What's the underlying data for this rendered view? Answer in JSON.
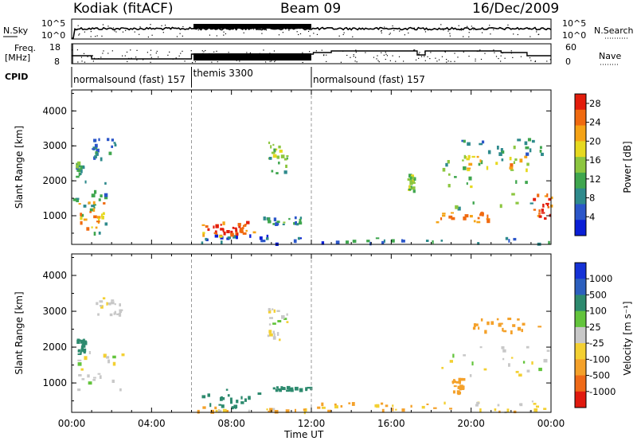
{
  "header": {
    "station": "Kodiak (fitACF)",
    "beam": "Beam 09",
    "date": "16/Dec/2009"
  },
  "aux_panels": {
    "nsky_label": "N.Sky",
    "nsky_ticks": [
      "10^5",
      "10^0"
    ],
    "nsearch_label": "N.Search",
    "nsearch_ticks": [
      "10^5",
      "10^0"
    ],
    "freq_label_1": "Freq.",
    "freq_label_2": "[MHz]",
    "freq_ticks": [
      "18",
      "8"
    ],
    "nave_label": "Nave",
    "nave_ticks": [
      "60",
      "0"
    ],
    "cpid_label": "CPID",
    "modes": [
      {
        "text": "normalsound (fast) 157",
        "start_hour": 0,
        "end_hour": 6
      },
      {
        "text": "themis 3300",
        "start_hour": 6,
        "end_hour": 12
      },
      {
        "text": "normalsound (fast) 157",
        "start_hour": 12,
        "end_hour": 24
      }
    ]
  },
  "chart_data": [
    {
      "type": "heatmap",
      "title": "",
      "xlabel": "Time UT",
      "ylabel": "Slant Range [km]",
      "x_range_hours": [
        0,
        24
      ],
      "x_ticks": [
        "00:00",
        "04:00",
        "08:00",
        "12:00",
        "16:00",
        "20:00",
        "00:00"
      ],
      "ylim": [
        180,
        4600
      ],
      "y_ticks": [
        "1000",
        "2000",
        "3000",
        "4000"
      ],
      "colorbar": {
        "label": "Power [dB]",
        "ticks": [
          "4",
          "8",
          "12",
          "16",
          "20",
          "24",
          "28"
        ],
        "range": [
          0,
          30
        ],
        "colors": [
          "#0a1fd6",
          "#2b56c9",
          "#2e8a8c",
          "#3fa64e",
          "#8cc63f",
          "#e6d91f",
          "#f5a316",
          "#f06a10",
          "#e31d0c"
        ]
      },
      "regions": [
        {
          "t0": 0.05,
          "t1": 1.7,
          "r0": 400,
          "r1": 2300,
          "power": 10
        },
        {
          "t0": 0.3,
          "t1": 1.6,
          "r0": 600,
          "r1": 1400,
          "power": 22
        },
        {
          "t0": 1.0,
          "t1": 2.2,
          "r0": 2600,
          "r1": 3200,
          "power": 8
        },
        {
          "t0": 0.2,
          "t1": 0.5,
          "r0": 2100,
          "r1": 2500,
          "power": 12
        },
        {
          "t0": 6.0,
          "t1": 12.0,
          "r0": 180,
          "r1": 420,
          "power": 6
        },
        {
          "t0": 6.5,
          "t1": 9.2,
          "r0": 350,
          "r1": 850,
          "power": 24
        },
        {
          "t0": 7.0,
          "t1": 8.6,
          "r0": 450,
          "r1": 750,
          "power": 28
        },
        {
          "t0": 9.5,
          "t1": 11.5,
          "r0": 750,
          "r1": 950,
          "power": 10
        },
        {
          "t0": 9.8,
          "t1": 10.8,
          "r0": 2200,
          "r1": 3100,
          "power": 14
        },
        {
          "t0": 12.0,
          "t1": 24.0,
          "r0": 180,
          "r1": 380,
          "power": 8
        },
        {
          "t0": 16.8,
          "t1": 17.1,
          "r0": 1700,
          "r1": 2200,
          "power": 16
        },
        {
          "t0": 18.2,
          "t1": 21.2,
          "r0": 800,
          "r1": 1100,
          "power": 24
        },
        {
          "t0": 18.5,
          "t1": 23.0,
          "r0": 1200,
          "r1": 2600,
          "power": 14
        },
        {
          "t0": 19.5,
          "t1": 22.8,
          "r0": 2300,
          "r1": 2700,
          "power": 20
        },
        {
          "t0": 19.5,
          "t1": 23.5,
          "r0": 2700,
          "r1": 3200,
          "power": 10
        },
        {
          "t0": 23.0,
          "t1": 24.0,
          "r0": 900,
          "r1": 1600,
          "power": 26
        }
      ]
    },
    {
      "type": "heatmap",
      "title": "",
      "xlabel": "Time UT",
      "ylabel": "Slant Range [km]",
      "x_range_hours": [
        0,
        24
      ],
      "x_ticks": [
        "00:00",
        "04:00",
        "08:00",
        "12:00",
        "16:00",
        "20:00",
        "00:00"
      ],
      "ylim": [
        180,
        4600
      ],
      "y_ticks": [
        "1000",
        "2000",
        "3000",
        "4000"
      ],
      "colorbar": {
        "label": "Velocity [m s⁻¹]",
        "ticks": [
          "1000",
          "500",
          "100",
          "25",
          "-25",
          "-100",
          "-500",
          "-1000"
        ],
        "colors": [
          "#1532d6",
          "#2c5fbe",
          "#2d8a6e",
          "#63c43c",
          "#c8c8c8",
          "#f3d032",
          "#f4a12a",
          "#ef6a18",
          "#e11a0f"
        ]
      },
      "regions": [
        {
          "t0": 0.1,
          "t1": 2.6,
          "r0": 650,
          "r1": 1900,
          "velocity": 0
        },
        {
          "t0": 0.2,
          "t1": 0.6,
          "r0": 1800,
          "r1": 2200,
          "velocity": 150
        },
        {
          "t0": 1.2,
          "t1": 2.4,
          "r0": 2900,
          "r1": 3400,
          "velocity": 0
        },
        {
          "t0": 6.2,
          "t1": 9.5,
          "r0": 300,
          "r1": 850,
          "velocity": 200
        },
        {
          "t0": 6.0,
          "t1": 12.0,
          "r0": 180,
          "r1": 320,
          "velocity": -50
        },
        {
          "t0": 9.7,
          "t1": 10.8,
          "r0": 2200,
          "r1": 3100,
          "velocity": 0
        },
        {
          "t0": 10.0,
          "t1": 12.0,
          "r0": 780,
          "r1": 880,
          "velocity": 120
        },
        {
          "t0": 12.0,
          "t1": 18.0,
          "r0": 180,
          "r1": 450,
          "velocity": -80
        },
        {
          "t0": 18.5,
          "t1": 23.8,
          "r0": 1200,
          "r1": 2000,
          "velocity": 0
        },
        {
          "t0": 19.0,
          "t1": 19.6,
          "r0": 700,
          "r1": 1100,
          "velocity": -150
        },
        {
          "t0": 20.0,
          "t1": 23.5,
          "r0": 2400,
          "r1": 2800,
          "velocity": -200
        },
        {
          "t0": 18.0,
          "t1": 24.0,
          "r0": 180,
          "r1": 500,
          "velocity": -40
        }
      ]
    }
  ]
}
